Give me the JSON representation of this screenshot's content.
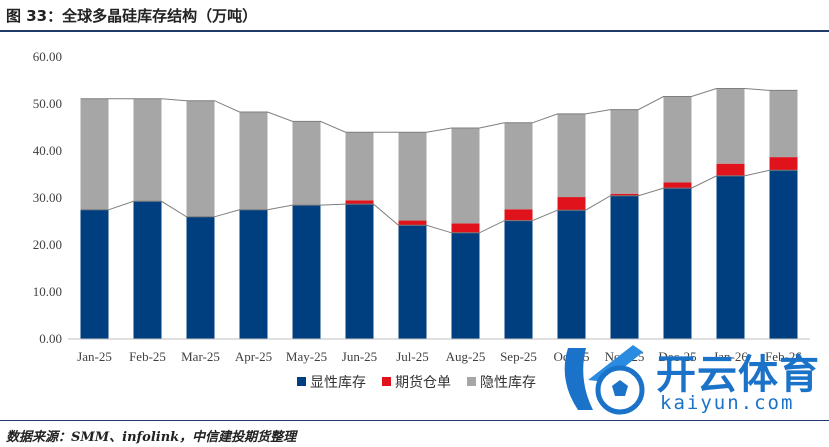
{
  "title": "图 33：全球多晶硅库存结构（万吨）",
  "source": "数据来源：SMM、infolink，中信建投期货整理",
  "watermark": {
    "name": "开云体育",
    "url": "kaiyun.com"
  },
  "colors": {
    "visible": "#003f7f",
    "futures": "#e0121b",
    "hidden": "#a6a6a6",
    "line": "#7f7f7f"
  },
  "chart_data": {
    "type": "bar",
    "stacked": true,
    "categories": [
      "Jan-25",
      "Feb-25",
      "Mar-25",
      "Apr-25",
      "May-25",
      "Jun-25",
      "Jul-25",
      "Aug-25",
      "Sep-25",
      "Oct-25",
      "Nov-25",
      "Dec-25",
      "Jan-26",
      "Feb-26"
    ],
    "yticks": [
      "0.00",
      "10.00",
      "20.00",
      "30.00",
      "40.00",
      "50.00",
      "60.00"
    ],
    "ylim": [
      0,
      60
    ],
    "grid": false,
    "legend_position": "bottom",
    "series": [
      {
        "name": "显性库存",
        "color": "#003f7f",
        "values": [
          27.5,
          29.3,
          26.0,
          27.5,
          28.5,
          28.7,
          24.2,
          22.6,
          25.2,
          27.4,
          30.5,
          32.1,
          34.7,
          35.9
        ]
      },
      {
        "name": "期货仓单",
        "color": "#e0121b",
        "values": [
          0.0,
          0.0,
          0.0,
          0.0,
          0.0,
          0.8,
          1.0,
          2.0,
          2.4,
          2.8,
          0.4,
          1.2,
          2.6,
          2.8
        ]
      },
      {
        "name": "隐性库存",
        "color": "#a6a6a6",
        "values": [
          23.6,
          21.8,
          24.7,
          20.8,
          17.8,
          14.5,
          18.8,
          20.3,
          18.4,
          17.7,
          17.9,
          18.3,
          16.0,
          14.2
        ]
      }
    ]
  }
}
